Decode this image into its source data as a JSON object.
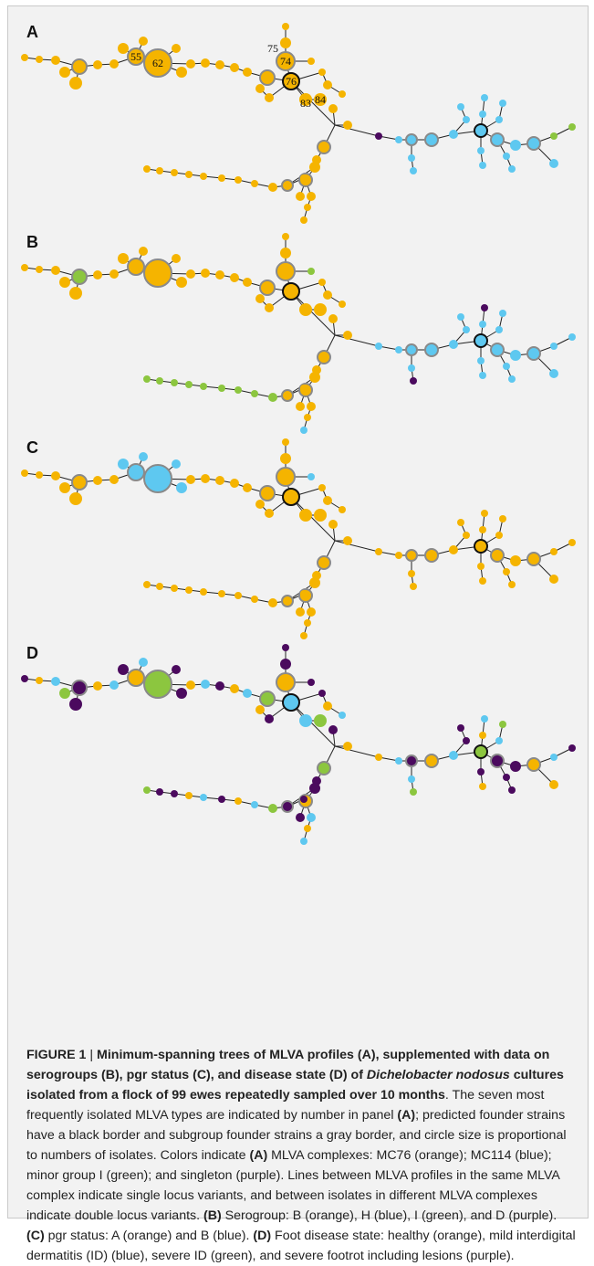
{
  "figure": {
    "panel_labels": [
      "A",
      "B",
      "C",
      "D"
    ],
    "node_numbers": [
      "55",
      "62",
      "75",
      "74",
      "76",
      "83",
      "84"
    ],
    "colors": {
      "orange": "#f5b400",
      "blue": "#5ec8f0",
      "green": "#8cc63f",
      "purple": "#4b0a5e",
      "edge": "#222222",
      "subgroup_border": "#8a8a8a",
      "founder_border": "#111111"
    }
  },
  "caption": {
    "figure_label": "FIGURE 1",
    "separator": " | ",
    "title_part1": "Minimum-spanning trees of MLVA profiles (A), supplemented with data on serogroups (B), pgr status (C), and disease state (D) of ",
    "title_species": "Dichelobacter nodosus",
    "title_part2": " cultures isolated from a flock of 99 ewes repeatedly sampled over 10 months",
    "body_1": ". The seven most frequently isolated MLVA types are indicated by number in panel ",
    "ref_A1": "(A)",
    "body_2": "; predicted founder strains have a black border and subgroup founder strains a gray border, and circle size is proportional to numbers of isolates. Colors indicate ",
    "ref_A2": "(A)",
    "body_3": " MLVA complexes: MC76 (orange); MC114 (blue); minor group I (green); and singleton (purple). Lines between MLVA profiles in the same MLVA complex indicate single locus variants, and between isolates in different MLVA complexes indicate double locus variants. ",
    "ref_B": "(B)",
    "body_4": " Serogroup: B (orange), H (blue), I (green), and D (purple). ",
    "ref_C": "(C)",
    "body_5": " pgr status: A (orange) and B (blue). ",
    "ref_D": "(D)",
    "body_6": " Foot disease state: healthy (orange), mild interdigital dermatitis (ID) (blue), severe ID (green), and severe footrot including lesions (purple)."
  }
}
